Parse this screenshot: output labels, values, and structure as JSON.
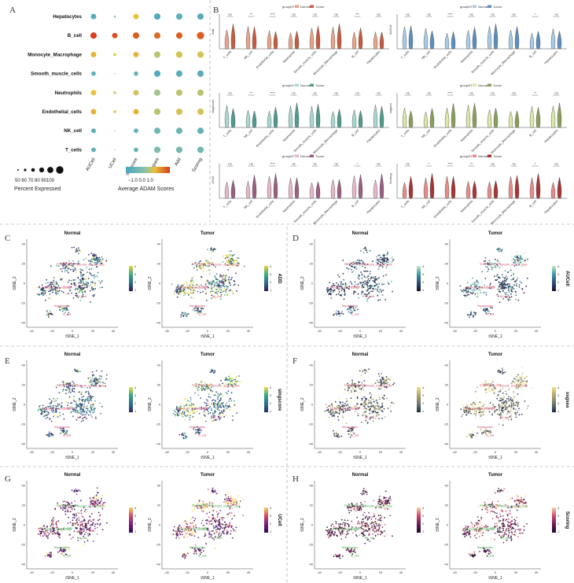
{
  "panels": {
    "A": "A",
    "B": "B",
    "C": "C",
    "D": "D",
    "E": "E",
    "F": "F",
    "G": "G",
    "H": "H"
  },
  "dotplot": {
    "rows": [
      "Hepatocytes",
      "B_cell",
      "Monocyte_Macrophage",
      "Smooth_muscle_cells",
      "Neutrophils",
      "Endothelial_cells",
      "NK_cell",
      "T_cells"
    ],
    "cols": [
      "AUCell",
      "UCell",
      "singscore",
      "ssgsea",
      "Add",
      "Scoring"
    ],
    "size_values": [
      [
        70,
        30,
        70,
        80,
        80,
        80
      ],
      [
        80,
        70,
        80,
        80,
        80,
        90
      ],
      [
        70,
        40,
        70,
        80,
        80,
        80
      ],
      [
        60,
        15,
        60,
        80,
        80,
        80
      ],
      [
        70,
        40,
        70,
        80,
        80,
        80
      ],
      [
        70,
        40,
        70,
        80,
        80,
        80
      ],
      [
        60,
        20,
        60,
        80,
        80,
        80
      ],
      [
        60,
        20,
        60,
        80,
        80,
        80
      ]
    ],
    "score_values": [
      [
        -0.9,
        -0.6,
        0.4,
        -1.0,
        -0.8,
        -0.9
      ],
      [
        1.3,
        1.2,
        1.1,
        1.0,
        1.1,
        1.1
      ],
      [
        0.5,
        0.4,
        0.5,
        0.2,
        0.3,
        0.3
      ],
      [
        -0.8,
        -0.7,
        -0.6,
        -1.0,
        -0.9,
        -0.9
      ],
      [
        0.4,
        0.3,
        0.3,
        0.1,
        0.2,
        0.2
      ],
      [
        0.5,
        0.4,
        0.5,
        0.2,
        0.3,
        0.3
      ],
      [
        -0.9,
        -0.8,
        -0.8,
        -0.5,
        -0.6,
        -0.7
      ],
      [
        -0.8,
        -0.7,
        -0.6,
        -0.3,
        -0.4,
        -0.5
      ]
    ],
    "size_legend_values": "50 60 70 80 90100",
    "size_legend_title": "Percent Expressed",
    "color_legend_ticks": "−1.0 0.0 1.0",
    "color_legend_title": "Average ADAM Scores"
  },
  "violins": {
    "group_label": "groupNT",
    "normal_label": "Normal",
    "tumor_label": "Tumor",
    "celltypes": [
      "T_cells",
      "NK_cell",
      "Endothelial_cells",
      "Neutrophils",
      "Smooth_muscle_cells",
      "Monocyte_Macrophage",
      "B_cell",
      "Hepatocytes"
    ],
    "sig_left_top": [
      "ns",
      "**",
      "****",
      "ns",
      "ns",
      "ns",
      "***",
      "ns"
    ],
    "sig_right_top": [
      "ns",
      "ns",
      "****",
      "ns",
      "ns",
      "ns",
      "*",
      "ns"
    ],
    "sig_left_mid": [
      "ns",
      "**",
      "****",
      "ns",
      "ns",
      "ns",
      "ns",
      "ns"
    ],
    "sig_right_mid": [
      "ns",
      "ns",
      "****",
      "ns",
      "ns",
      "ns",
      "**",
      "ns"
    ],
    "sig_left_bot": [
      "ns",
      "ns",
      "****",
      "ns",
      "ns",
      "ns",
      "*",
      "ns"
    ],
    "sig_right_bot": [
      "ns",
      "*",
      "****",
      "**",
      "ns",
      "ns",
      "*",
      "ns"
    ],
    "ylabels": [
      "Add",
      "AUCell",
      "singscore",
      "ssgsea",
      "UCell",
      "Scoring"
    ],
    "colors": {
      "add_n": "#e8a38a",
      "add_t": "#c65b3e",
      "auc_n": "#a9cbe6",
      "auc_t": "#5b8fbf",
      "sing_n": "#a8d8cf",
      "sing_t": "#4f9c8e",
      "ss_n": "#dce7a8",
      "ss_t": "#8aa05a",
      "uc_n": "#e6b8c8",
      "uc_t": "#9a5f83",
      "sc_n": "#e88a8a",
      "sc_t": "#a83434"
    }
  },
  "tsne": {
    "normal_title": "Normal",
    "tumor_title": "Tumor",
    "xlabel": "tSNE_1",
    "ylabel": "tSNE_2",
    "xticks": [
      "-40",
      "-20",
      "0",
      "20",
      "40"
    ],
    "yticks": [
      "40",
      "20",
      "0",
      "-20",
      "-40"
    ],
    "legend_ticks": [
      "4",
      "3",
      "2",
      "1"
    ],
    "cluster_labels": [
      "Endothelial_cells",
      "Smooth_muscle_cells",
      "Monocyte_Macrophage",
      "Hepatocytes",
      "B_cell",
      "T_cells",
      "NK_cell"
    ],
    "panels": [
      {
        "letter": "C",
        "score": "ADD",
        "label_color": "#d24a6b",
        "palette": [
          "#2b1b5a",
          "#2c6b8a",
          "#3fae82",
          "#e8d33a"
        ]
      },
      {
        "letter": "D",
        "score": "AUCell",
        "label_color": "#d24a6b",
        "palette": [
          "#1a1230",
          "#2c4d7a",
          "#3a9aa8",
          "#c9eac4"
        ]
      },
      {
        "letter": "E",
        "score": "singscore",
        "label_color": "#d24a6b",
        "palette": [
          "#2a2a6a",
          "#2f6f8f",
          "#33a58a",
          "#e6e34a"
        ]
      },
      {
        "letter": "F",
        "score": "ssgsea",
        "label_color": "#d24a6b",
        "palette": [
          "#1d2a4a",
          "#6c7a6a",
          "#b3a36a",
          "#f5e08a"
        ]
      },
      {
        "letter": "G",
        "score": "UCell",
        "label_color": "#2f9a3a",
        "palette": [
          "#2a0b55",
          "#7a1e7e",
          "#cf4c6a",
          "#f8d35a"
        ]
      },
      {
        "letter": "H",
        "score": "Scoring",
        "label_color": "#2f9a3a",
        "palette": [
          "#1b0a2a",
          "#6a1b5a",
          "#d1496a",
          "#f7d3a8"
        ]
      }
    ]
  }
}
